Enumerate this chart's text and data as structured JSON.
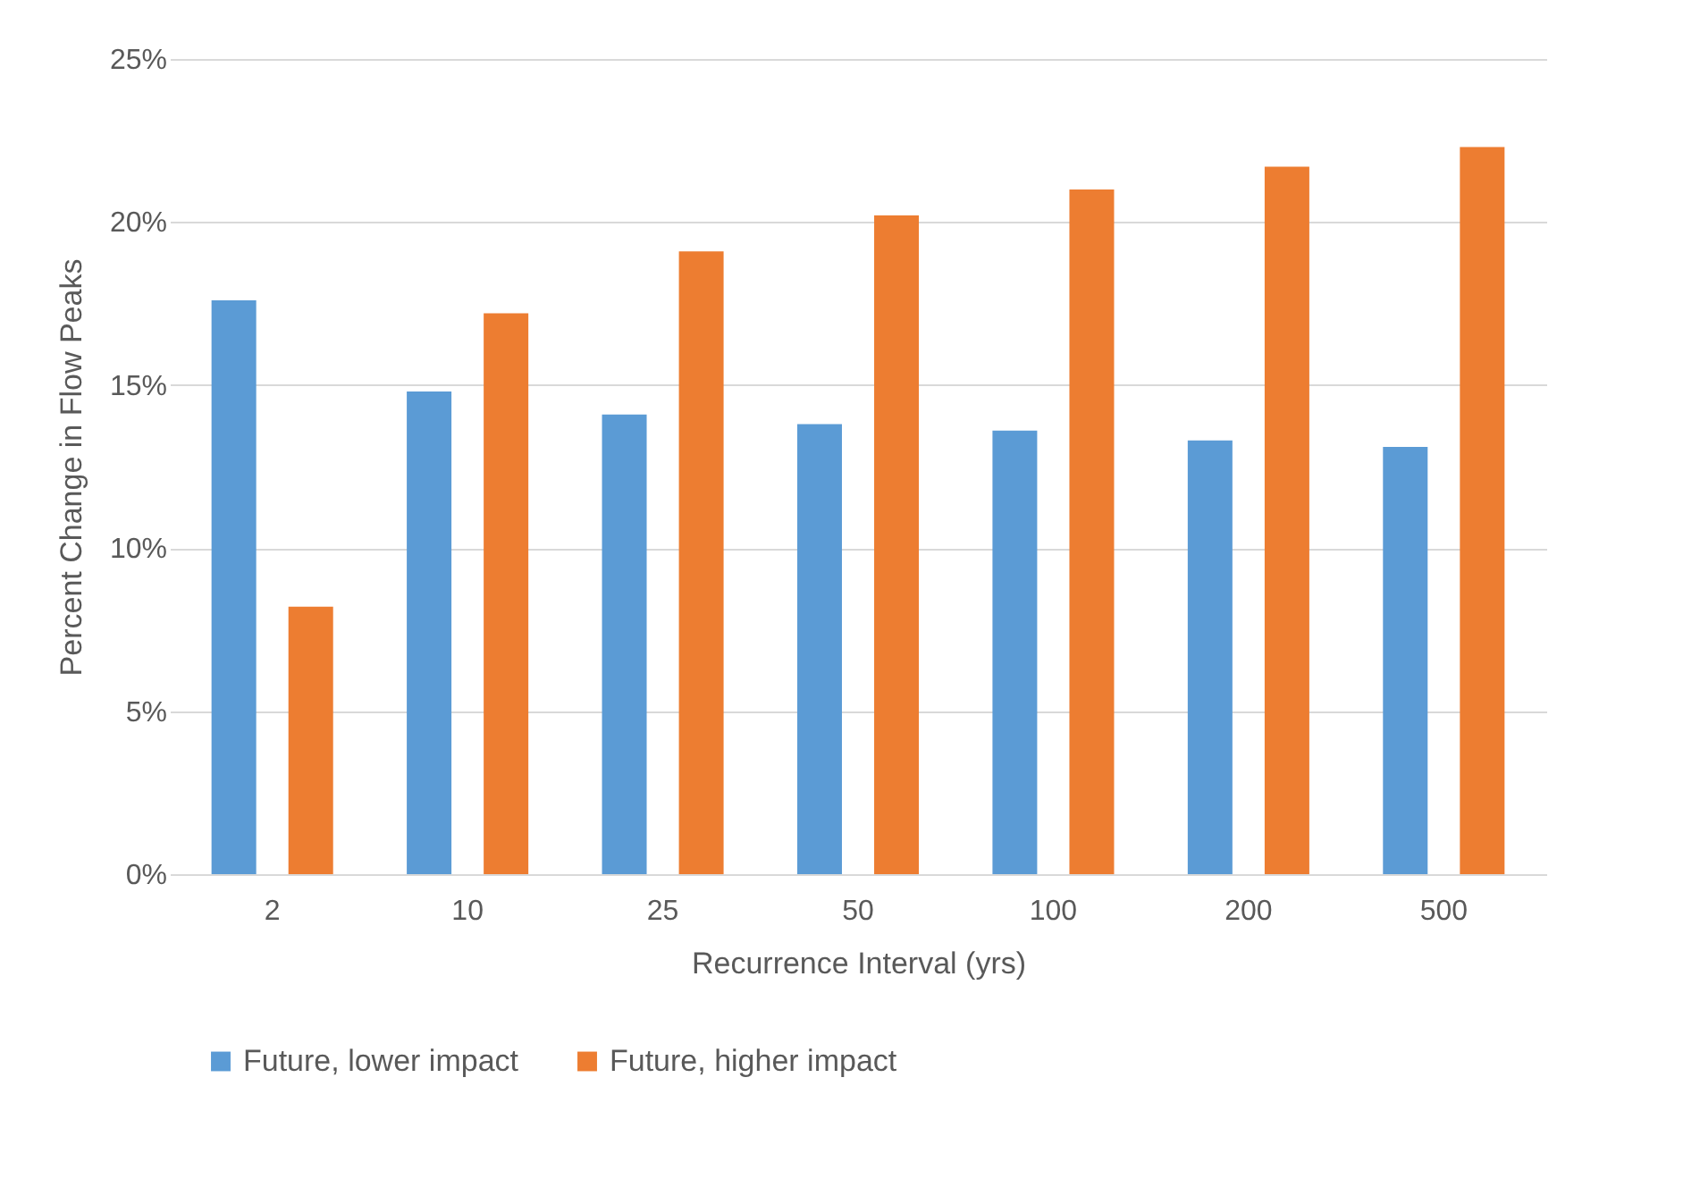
{
  "chart_data": {
    "type": "bar",
    "xlabel": "Recurrence Interval (yrs)",
    "ylabel": "Percent Change in Flow Peaks",
    "categories": [
      "2",
      "10",
      "25",
      "50",
      "100",
      "200",
      "500"
    ],
    "series": [
      {
        "name": "Future, lower impact",
        "color": "#5b9bd5",
        "values": [
          17.6,
          14.8,
          14.1,
          13.8,
          13.6,
          13.3,
          13.1
        ]
      },
      {
        "name": "Future, higher impact",
        "color": "#ed7d31",
        "values": [
          8.2,
          17.2,
          19.1,
          20.2,
          21.0,
          21.7,
          22.3
        ]
      }
    ],
    "ylim": [
      0,
      25
    ],
    "yticks": [
      {
        "value": 0,
        "label": "0%"
      },
      {
        "value": 5,
        "label": "5%"
      },
      {
        "value": 10,
        "label": "10%"
      },
      {
        "value": 15,
        "label": "15%"
      },
      {
        "value": 20,
        "label": "20%"
      },
      {
        "value": 25,
        "label": "25%"
      }
    ],
    "grid": "y",
    "legend": "bottom"
  }
}
